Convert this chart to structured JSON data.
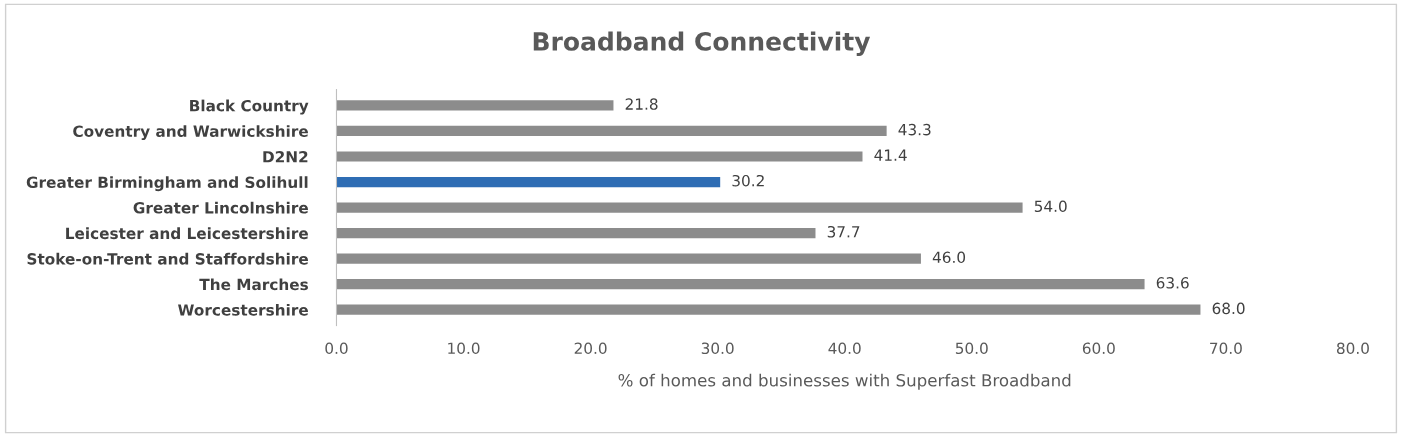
{
  "chart_data": {
    "type": "bar",
    "orientation": "horizontal",
    "title": "Broadband Connectivity",
    "xlabel": "% of homes and businesses with Superfast Broadband",
    "categories": [
      "Black Country",
      "Coventry and Warwickshire",
      "D2N2",
      "Greater Birmingham and Solihull",
      "Greater Lincolnshire",
      "Leicester and Leicestershire",
      "Stoke-on-Trent and Staffordshire",
      "The Marches",
      "Worcestershire"
    ],
    "values": [
      21.8,
      43.3,
      41.4,
      30.2,
      54.0,
      37.7,
      46.0,
      63.6,
      68.0
    ],
    "value_labels": [
      "21.8",
      "43.3",
      "41.4",
      "30.2",
      "54.0",
      "37.7",
      "46.0",
      "63.6",
      "68.0"
    ],
    "colors": [
      "#8c8c8c",
      "#8c8c8c",
      "#8c8c8c",
      "#2e6db4",
      "#8c8c8c",
      "#8c8c8c",
      "#8c8c8c",
      "#8c8c8c",
      "#8c8c8c"
    ],
    "xlim": [
      0,
      80
    ],
    "xticks": [
      {
        "value": 0,
        "label": "0.0"
      },
      {
        "value": 10,
        "label": "10.0"
      },
      {
        "value": 20,
        "label": "20.0"
      },
      {
        "value": 30,
        "label": "30.0"
      },
      {
        "value": 40,
        "label": "40.0"
      },
      {
        "value": 50,
        "label": "50.0"
      },
      {
        "value": 60,
        "label": "60.0"
      },
      {
        "value": 70,
        "label": "70.0"
      },
      {
        "value": 80,
        "label": "80.0"
      }
    ],
    "grid": false,
    "legend": false
  }
}
